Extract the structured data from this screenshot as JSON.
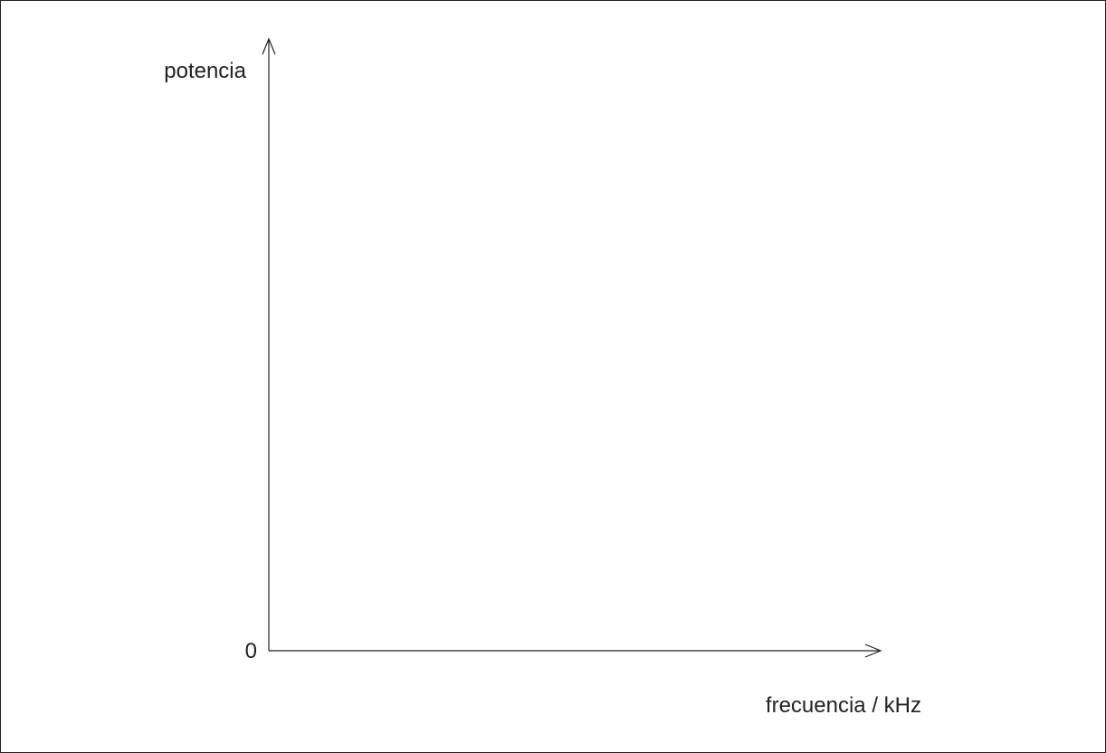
{
  "chart_data": {
    "type": "line",
    "title": "",
    "xlabel": "frecuencia / kHz",
    "ylabel": "potencia",
    "origin_label": "0",
    "series": [],
    "grid": false,
    "axis_color": "#222222"
  }
}
